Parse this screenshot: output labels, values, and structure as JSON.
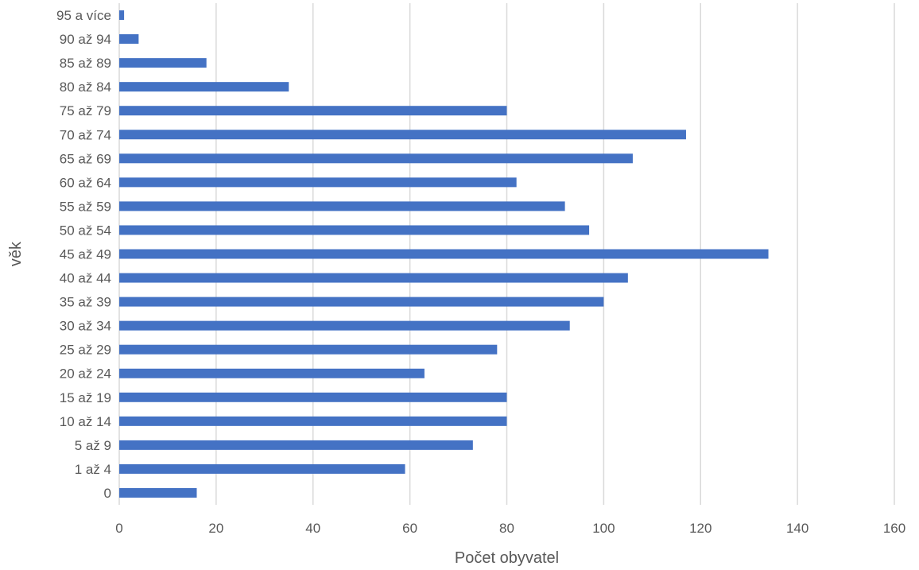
{
  "chart_data": {
    "type": "bar",
    "orientation": "horizontal",
    "title": "",
    "xlabel": "Počet obyvatel",
    "ylabel": "věk",
    "categories": [
      "0",
      "1 až 4",
      "5 až 9",
      "10 až 14",
      "15 až 19",
      "20 až 24",
      "25 až 29",
      "30 až 34",
      "35 až 39",
      "40 až 44",
      "45 až 49",
      "50 až 54",
      "55 až 59",
      "60 až 64",
      "65 až 69",
      "70 až 74",
      "75 až 79",
      "80 až 84",
      "85 až 89",
      "90 až 94",
      "95 a více"
    ],
    "values": [
      16,
      59,
      73,
      80,
      80,
      63,
      78,
      93,
      100,
      105,
      134,
      97,
      92,
      82,
      106,
      117,
      80,
      35,
      18,
      4,
      1
    ],
    "xlim": [
      0,
      160
    ],
    "xticks": [
      0,
      20,
      40,
      60,
      80,
      100,
      120,
      140,
      160
    ],
    "grid": "vertical",
    "legend": "none",
    "bar_color": "#4472c4"
  }
}
